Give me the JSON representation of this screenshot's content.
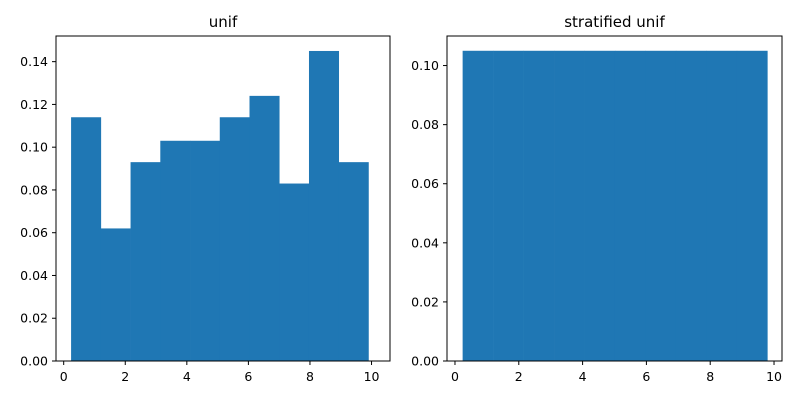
{
  "colors": {
    "bar": "#1f77b4",
    "axis": "#000000",
    "background": "#ffffff"
  },
  "chart_data": [
    {
      "type": "bar",
      "title": "unif",
      "xlabel": "",
      "ylabel": "",
      "grid": false,
      "legend": "none",
      "xlim": [
        -0.25,
        10.6
      ],
      "ylim": [
        0,
        0.152
      ],
      "x_ticks": [
        0,
        2,
        4,
        6,
        8,
        10
      ],
      "x_tick_labels": [
        "0",
        "2",
        "4",
        "6",
        "8",
        "10"
      ],
      "y_ticks": [
        0,
        0.02,
        0.04,
        0.06,
        0.08,
        0.1,
        0.12,
        0.14
      ],
      "y_tick_labels": [
        "0.00",
        "0.02",
        "0.04",
        "0.06",
        "0.08",
        "0.10",
        "0.12",
        "0.14"
      ],
      "bin_edges": [
        0.24,
        1.206,
        2.172,
        3.138,
        4.104,
        5.07,
        6.036,
        7.002,
        7.968,
        8.934,
        9.9
      ],
      "values": [
        0.114,
        0.062,
        0.093,
        0.103,
        0.103,
        0.114,
        0.124,
        0.083,
        0.145,
        0.093
      ]
    },
    {
      "type": "bar",
      "title": "stratified unif",
      "xlabel": "",
      "ylabel": "",
      "grid": false,
      "legend": "none",
      "xlim": [
        -0.25,
        10.25
      ],
      "ylim": [
        0,
        0.11
      ],
      "x_ticks": [
        0,
        2,
        4,
        6,
        8,
        10
      ],
      "x_tick_labels": [
        "0",
        "2",
        "4",
        "6",
        "8",
        "10"
      ],
      "y_ticks": [
        0,
        0.02,
        0.04,
        0.06,
        0.08,
        0.1
      ],
      "y_tick_labels": [
        "0.00",
        "0.02",
        "0.04",
        "0.06",
        "0.08",
        "0.10"
      ],
      "bin_edges": [
        0.24,
        1.195,
        2.15,
        3.105,
        4.06,
        5.015,
        5.97,
        6.925,
        7.88,
        8.835,
        9.79
      ],
      "values": [
        0.105,
        0.105,
        0.105,
        0.105,
        0.105,
        0.105,
        0.105,
        0.105,
        0.105,
        0.105
      ]
    }
  ]
}
